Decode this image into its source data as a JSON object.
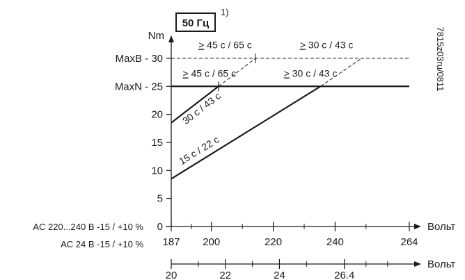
{
  "chart_data": {
    "type": "line",
    "frequency_label": "50 Гц",
    "footnote": "1)",
    "ylabel": "Nm",
    "xunit": "Вольт",
    "doc_code": "7815z03ru/0811",
    "ylim": [
      0,
      32
    ],
    "yticks": [
      {
        "value": 0,
        "label": "0"
      },
      {
        "value": 5,
        "label": "5"
      },
      {
        "value": 10,
        "label": "10"
      },
      {
        "value": 15,
        "label": "15"
      },
      {
        "value": 20,
        "label": "20"
      },
      {
        "value": 25,
        "label": "MaxN - 25"
      },
      {
        "value": 30,
        "label": "MaxB - 30"
      }
    ],
    "axis_230": {
      "label": "AC 220...240 В -15 / +10 %",
      "min": 187,
      "max": 264,
      "labeled_ticks": [
        187,
        200,
        220,
        240,
        264
      ],
      "minor_ticks": [
        193.5,
        210,
        230,
        250
      ]
    },
    "axis_24": {
      "label": "AC 24 В -15 / +10 %",
      "min": 20,
      "max": 28.8,
      "labeled_ticks": [
        {
          "value": 20,
          "label": "20"
        },
        {
          "value": 22,
          "label": "22"
        },
        {
          "value": 24,
          "label": "24"
        },
        {
          "value": 26.4,
          "label": "26.4"
        }
      ],
      "minor_ticks": [
        21,
        23,
        25,
        27.2,
        28
      ]
    },
    "max_n_line": {
      "y": 25,
      "x": [
        187,
        264
      ]
    },
    "max_b_line": {
      "y": 30,
      "x": [
        187,
        264
      ]
    },
    "series": [
      {
        "name": "30 с / 43 с",
        "style": "solid",
        "x": [
          187,
          202.3
        ],
        "y": [
          18.5,
          25
        ]
      },
      {
        "name": "30 с / 43 с",
        "style": "dashed",
        "x": [
          202.3,
          214.3
        ],
        "y": [
          25,
          30
        ]
      },
      {
        "name": "15 с / 22 с",
        "style": "solid",
        "x": [
          187,
          235.3
        ],
        "y": [
          8.5,
          25
        ]
      },
      {
        "name": "15 с / 22 с",
        "style": "dashed",
        "x": [
          235.3,
          248.6
        ],
        "y": [
          25,
          30
        ]
      }
    ],
    "region_labels": [
      {
        "text": "> 45 с / 65 с",
        "x": 195.8,
        "y": 31.8
      },
      {
        "text": "> 30 с / 43 с",
        "x": 228.6,
        "y": 31.8
      },
      {
        "text": "> 45 с / 65 с",
        "x": 190.7,
        "y": 26.7
      },
      {
        "text": "> 30 с / 43 с",
        "x": 223.4,
        "y": 26.7
      }
    ],
    "grid": false
  }
}
